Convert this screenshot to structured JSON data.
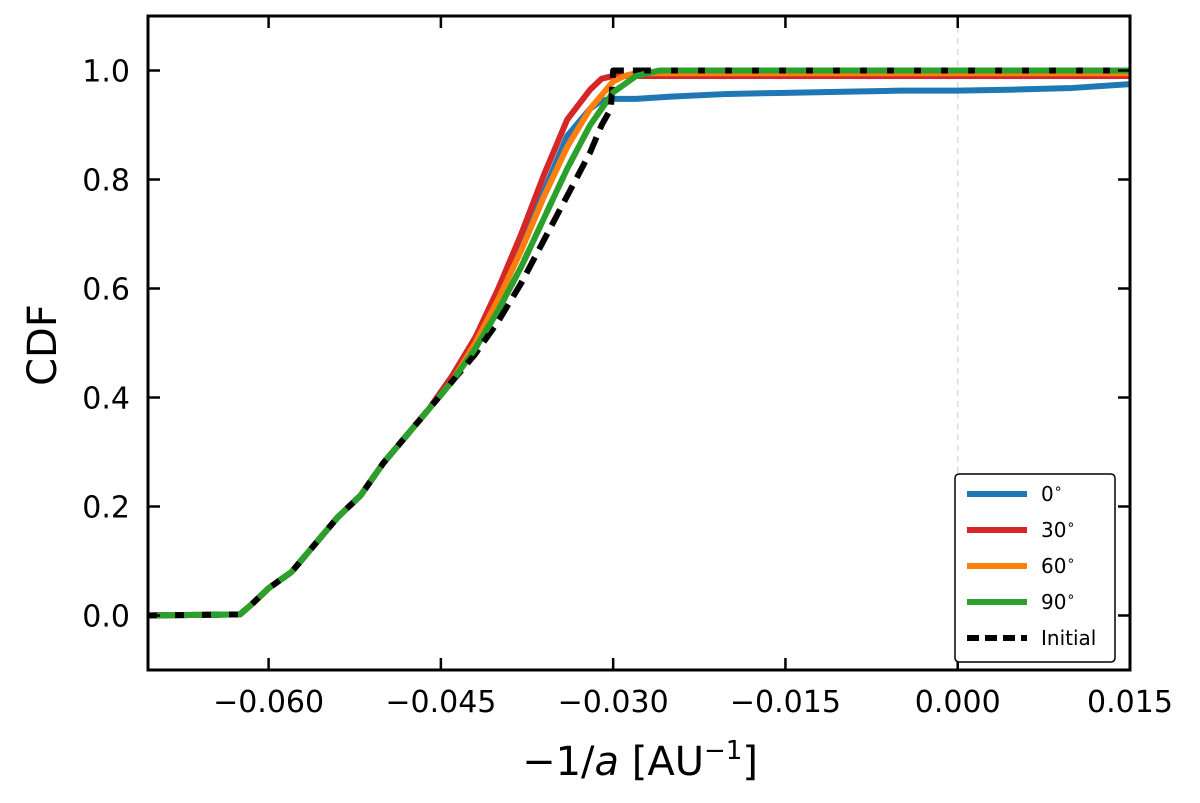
{
  "chart_data": {
    "type": "line",
    "title": "",
    "xlabel": "−1/a [AU⁻¹]",
    "ylabel": "CDF",
    "xlim": [
      -0.0705,
      0.015
    ],
    "ylim": [
      -0.1,
      1.1
    ],
    "xticks": [
      -0.06,
      -0.045,
      -0.03,
      -0.015,
      0.0,
      0.015
    ],
    "xtick_labels": [
      "−0.060",
      "−0.045",
      "−0.030",
      "−0.015",
      "0.000",
      "0.015"
    ],
    "yticks": [
      0.0,
      0.2,
      0.4,
      0.6,
      0.8,
      1.0
    ],
    "ytick_labels": [
      "0.0",
      "0.2",
      "0.4",
      "0.6",
      "0.8",
      "1.0"
    ],
    "grid": false,
    "reference_line_x": 0.0,
    "legend_position": "lower right",
    "series": [
      {
        "name": "0$^\\circ$",
        "color": "#1f77b4",
        "style": "solid",
        "x": [
          -0.0705,
          -0.0625,
          -0.0615,
          -0.06,
          -0.058,
          -0.056,
          -0.054,
          -0.052,
          -0.05,
          -0.048,
          -0.046,
          -0.044,
          -0.042,
          -0.04,
          -0.038,
          -0.036,
          -0.034,
          -0.032,
          -0.031,
          -0.03,
          -0.028,
          -0.025,
          -0.02,
          -0.015,
          -0.01,
          -0.005,
          0.0,
          0.005,
          0.01,
          0.015
        ],
        "y": [
          0.0,
          0.002,
          0.02,
          0.05,
          0.08,
          0.13,
          0.18,
          0.22,
          0.28,
          0.33,
          0.38,
          0.44,
          0.51,
          0.59,
          0.68,
          0.78,
          0.88,
          0.93,
          0.945,
          0.948,
          0.948,
          0.952,
          0.957,
          0.959,
          0.961,
          0.963,
          0.963,
          0.965,
          0.968,
          0.975
        ]
      },
      {
        "name": "30$^\\circ$",
        "color": "#d62728",
        "style": "solid",
        "x": [
          -0.0705,
          -0.0625,
          -0.0615,
          -0.06,
          -0.058,
          -0.056,
          -0.054,
          -0.052,
          -0.05,
          -0.048,
          -0.046,
          -0.044,
          -0.042,
          -0.04,
          -0.038,
          -0.036,
          -0.034,
          -0.032,
          -0.031,
          -0.03,
          -0.029,
          -0.028,
          -0.025,
          -0.02,
          -0.01,
          0.0,
          0.015
        ],
        "y": [
          0.0,
          0.002,
          0.02,
          0.05,
          0.08,
          0.13,
          0.18,
          0.22,
          0.28,
          0.33,
          0.38,
          0.44,
          0.51,
          0.6,
          0.7,
          0.81,
          0.91,
          0.965,
          0.985,
          0.99,
          0.99,
          0.99,
          0.99,
          0.99,
          0.99,
          0.99,
          0.99
        ]
      },
      {
        "name": "60$^\\circ$",
        "color": "#ff7f0e",
        "style": "solid",
        "x": [
          -0.0705,
          -0.0625,
          -0.0615,
          -0.06,
          -0.058,
          -0.056,
          -0.054,
          -0.052,
          -0.05,
          -0.048,
          -0.046,
          -0.044,
          -0.042,
          -0.04,
          -0.038,
          -0.036,
          -0.034,
          -0.032,
          -0.03,
          -0.029,
          -0.028,
          -0.02,
          -0.01,
          0.0,
          0.015
        ],
        "y": [
          0.0,
          0.002,
          0.02,
          0.05,
          0.08,
          0.13,
          0.18,
          0.22,
          0.28,
          0.33,
          0.38,
          0.43,
          0.5,
          0.58,
          0.67,
          0.77,
          0.86,
          0.93,
          0.98,
          0.99,
          0.995,
          0.995,
          0.995,
          0.995,
          0.995
        ]
      },
      {
        "name": "90$^\\circ$",
        "color": "#2ca02c",
        "style": "solid",
        "x": [
          -0.0705,
          -0.0625,
          -0.0615,
          -0.06,
          -0.058,
          -0.056,
          -0.054,
          -0.052,
          -0.05,
          -0.048,
          -0.046,
          -0.044,
          -0.042,
          -0.04,
          -0.038,
          -0.036,
          -0.034,
          -0.032,
          -0.03,
          -0.028,
          -0.026,
          -0.02,
          -0.01,
          0.0,
          0.015
        ],
        "y": [
          0.0,
          0.002,
          0.02,
          0.05,
          0.08,
          0.13,
          0.18,
          0.22,
          0.28,
          0.33,
          0.38,
          0.43,
          0.49,
          0.56,
          0.64,
          0.73,
          0.82,
          0.9,
          0.96,
          0.99,
          1.0,
          1.0,
          1.0,
          1.0,
          1.0
        ]
      },
      {
        "name": "Initial",
        "color": "#000000",
        "style": "dashed",
        "x": [
          -0.0705,
          -0.0625,
          -0.0615,
          -0.06,
          -0.058,
          -0.056,
          -0.054,
          -0.052,
          -0.05,
          -0.048,
          -0.046,
          -0.044,
          -0.042,
          -0.04,
          -0.038,
          -0.036,
          -0.034,
          -0.032,
          -0.031,
          -0.0302,
          -0.03,
          -0.028,
          -0.02,
          -0.01,
          0.0,
          0.015
        ],
        "y": [
          0.0,
          0.002,
          0.02,
          0.05,
          0.08,
          0.13,
          0.18,
          0.22,
          0.28,
          0.33,
          0.38,
          0.43,
          0.48,
          0.54,
          0.61,
          0.69,
          0.77,
          0.85,
          0.9,
          0.93,
          1.0,
          1.0,
          1.0,
          1.0,
          1.0,
          1.0
        ]
      }
    ]
  }
}
